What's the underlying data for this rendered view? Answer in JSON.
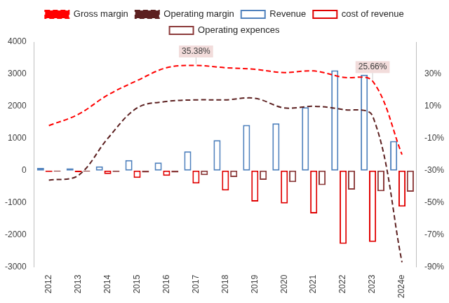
{
  "chart_data": {
    "type": "bar",
    "categories": [
      "2012",
      "2013",
      "2014",
      "2015",
      "2016",
      "2017",
      "2018",
      "2019",
      "2020",
      "2021",
      "2022",
      "2023",
      "2024e"
    ],
    "series": [
      {
        "name": "Revenue",
        "color": "#4f81bd",
        "values": [
          80,
          70,
          130,
          330,
          250,
          600,
          950,
          1420,
          1470,
          1970,
          3120,
          2980,
          920
        ]
      },
      {
        "name": "cost of revenue",
        "color": "#e00000",
        "values": [
          -40,
          -50,
          -110,
          -230,
          -160,
          -400,
          -620,
          -960,
          -1020,
          -1330,
          -2280,
          -2220,
          -1120
        ]
      },
      {
        "name": "Operating expences",
        "color": "#8b3a3a",
        "values": [
          -30,
          -30,
          -40,
          -60,
          -60,
          -140,
          -200,
          -290,
          -360,
          -450,
          -590,
          -640,
          -660
        ]
      },
      {
        "name": "Gross margin",
        "type": "line",
        "axis": "y2",
        "color": "#ff0000",
        "line_style": "dashed",
        "marker": "none",
        "values": [
          -2,
          5,
          17,
          26,
          34,
          35.38,
          34,
          33,
          31,
          32,
          28,
          25.66,
          -20
        ]
      },
      {
        "name": "Operating margin",
        "type": "line",
        "axis": "y2",
        "color": "#5c2020",
        "line_style": "dashed",
        "marker": "none",
        "values": [
          -36,
          -33,
          -10,
          9,
          13,
          14,
          14,
          15,
          9,
          10,
          8,
          4,
          -87
        ]
      }
    ],
    "ylim": [
      -3000,
      4000
    ],
    "yticks": [
      -3000,
      -2000,
      -1000,
      0,
      1000,
      2000,
      3000,
      4000
    ],
    "y2lim": [
      -90,
      50
    ],
    "y2ticks": [
      {
        "value": -90,
        "label": "-90%"
      },
      {
        "value": -70,
        "label": "-70%"
      },
      {
        "value": -50,
        "label": "-50%"
      },
      {
        "value": -30,
        "label": "-30%"
      },
      {
        "value": -10,
        "label": "-10%"
      },
      {
        "value": 10,
        "label": "10%"
      },
      {
        "value": 30,
        "label": "30%"
      }
    ],
    "grid": false,
    "legend": "top",
    "annotations": [
      {
        "text": "35.38%",
        "x": "2017",
        "y": 35.38,
        "axis": "y2"
      },
      {
        "text": "25.66%",
        "x": "2023",
        "y": 25.66,
        "axis": "y2"
      }
    ]
  }
}
